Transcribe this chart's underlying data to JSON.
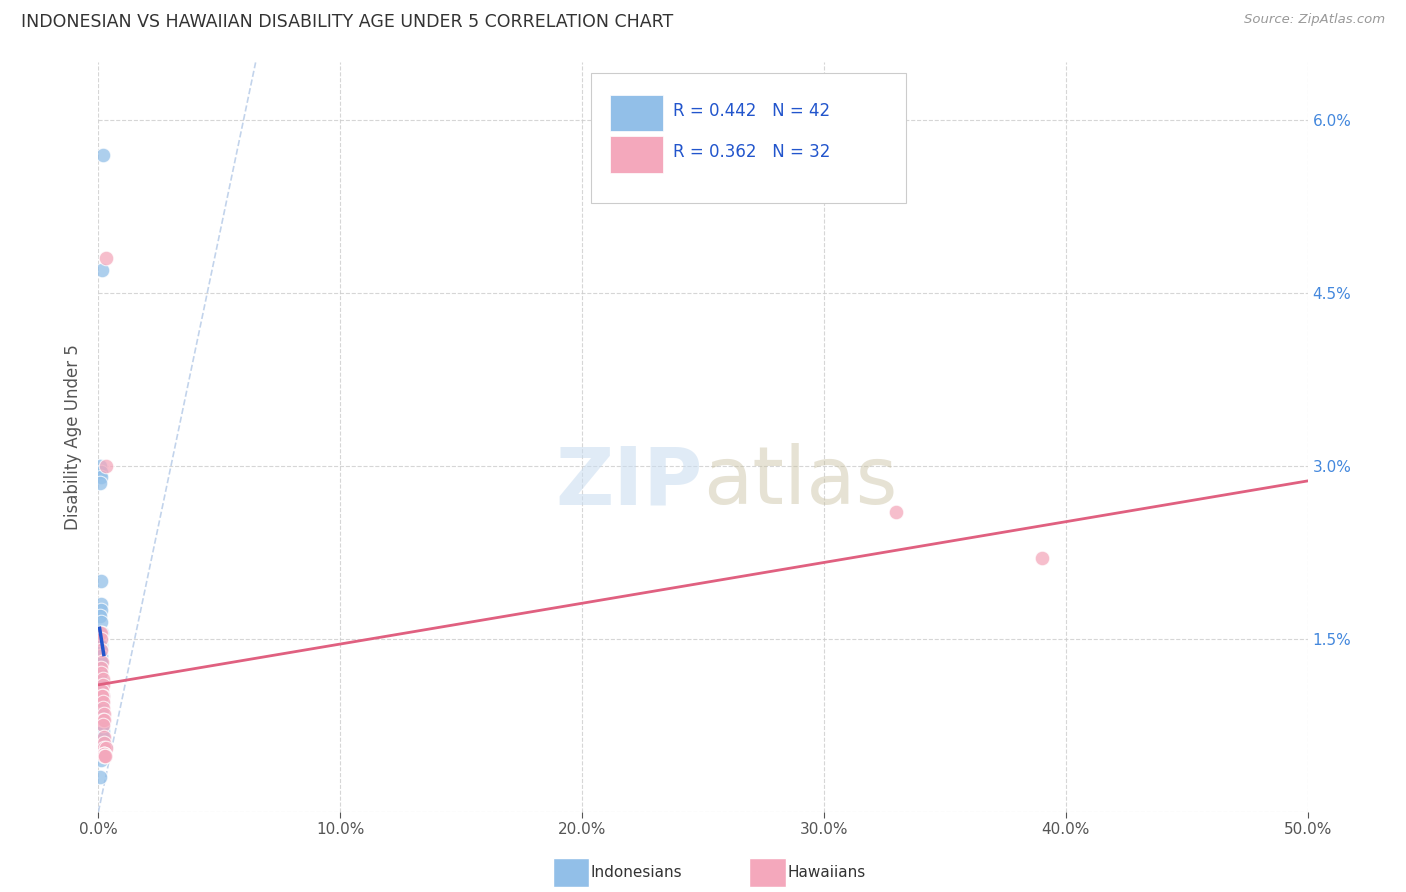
{
  "title": "INDONESIAN VS HAWAIIAN DISABILITY AGE UNDER 5 CORRELATION CHART",
  "source": "Source: ZipAtlas.com",
  "ylabel": "Disability Age Under 5",
  "color_indonesian": "#92bfe8",
  "color_hawaiian": "#f4a8bc",
  "color_line_indonesian": "#2255cc",
  "color_line_hawaiian": "#e06080",
  "color_line_diagonal": "#b8cce8",
  "indonesian_x": [
    0.002,
    0.0015,
    0.0005,
    0.001,
    0.001,
    0.0008,
    0.0012,
    0.001,
    0.001,
    0.0008,
    0.0012,
    0.0015,
    0.001,
    0.001,
    0.0012,
    0.0008,
    0.001,
    0.001,
    0.001,
    0.0012,
    0.001,
    0.0008,
    0.001,
    0.001,
    0.001,
    0.0012,
    0.001,
    0.0015,
    0.002,
    0.0015,
    0.0008,
    0.0015,
    0.0018,
    0.001,
    0.002,
    0.0018,
    0.002,
    0.0022,
    0.0018,
    0.001,
    0.0012,
    0.0008
  ],
  "indonesian_y": [
    0.057,
    0.047,
    0.03,
    0.0295,
    0.029,
    0.0285,
    0.02,
    0.018,
    0.0175,
    0.017,
    0.0165,
    0.0155,
    0.015,
    0.0145,
    0.0145,
    0.0145,
    0.014,
    0.0135,
    0.0135,
    0.013,
    0.013,
    0.0125,
    0.012,
    0.012,
    0.0115,
    0.011,
    0.01,
    0.01,
    0.01,
    0.0095,
    0.009,
    0.0085,
    0.008,
    0.0075,
    0.0075,
    0.007,
    0.0065,
    0.006,
    0.0055,
    0.005,
    0.0045,
    0.003
  ],
  "hawaiian_x": [
    0.0008,
    0.001,
    0.001,
    0.0012,
    0.0015,
    0.001,
    0.0012,
    0.0018,
    0.002,
    0.0015,
    0.0018,
    0.0015,
    0.002,
    0.002,
    0.0025,
    0.002,
    0.0025,
    0.002,
    0.0022,
    0.0025,
    0.0025,
    0.003,
    0.0025,
    0.0025,
    0.0025,
    0.0028,
    0.0025,
    0.0028,
    0.003,
    0.003,
    0.33,
    0.39
  ],
  "hawaiian_y": [
    0.0155,
    0.0155,
    0.015,
    0.014,
    0.013,
    0.0125,
    0.012,
    0.0115,
    0.011,
    0.0105,
    0.01,
    0.01,
    0.0095,
    0.009,
    0.0085,
    0.008,
    0.008,
    0.0075,
    0.0065,
    0.006,
    0.0055,
    0.0055,
    0.005,
    0.005,
    0.005,
    0.0048,
    0.0048,
    0.0048,
    0.03,
    0.048,
    0.026,
    0.022
  ],
  "xlim": [
    0.0,
    0.5
  ],
  "ylim": [
    0.0,
    0.065
  ],
  "xticks": [
    0.0,
    0.1,
    0.2,
    0.3,
    0.4,
    0.5
  ],
  "yticks": [
    0.0,
    0.015,
    0.03,
    0.045,
    0.06
  ]
}
